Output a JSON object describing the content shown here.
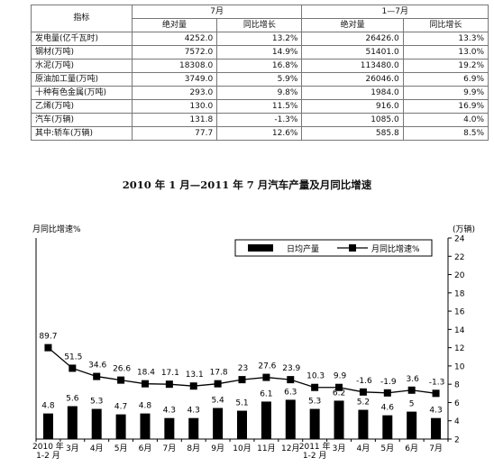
{
  "table": {
    "header": {
      "indicator": "指标",
      "month_group": "7月",
      "ytd_group": "1—7月",
      "abs_label": "绝对量",
      "growth_label": "同比增长"
    },
    "rows": [
      {
        "name": "发电量(亿千瓦时)",
        "jul_abs": "4252.0",
        "jul_growth": "13.2%",
        "ytd_abs": "26426.0",
        "ytd_growth": "13.3%"
      },
      {
        "name": "钢材(万吨)",
        "jul_abs": "7572.0",
        "jul_growth": "14.9%",
        "ytd_abs": "51401.0",
        "ytd_growth": "13.0%"
      },
      {
        "name": "水泥(万吨)",
        "jul_abs": "18308.0",
        "jul_growth": "16.8%",
        "ytd_abs": "113480.0",
        "ytd_growth": "19.2%"
      },
      {
        "name": "原油加工量(万吨)",
        "jul_abs": "3749.0",
        "jul_growth": "5.9%",
        "ytd_abs": "26046.0",
        "ytd_growth": "6.9%"
      },
      {
        "name": "十种有色金属(万吨)",
        "jul_abs": "293.0",
        "jul_growth": "9.8%",
        "ytd_abs": "1984.0",
        "ytd_growth": "9.9%"
      },
      {
        "name": "乙烯(万吨)",
        "jul_abs": "130.0",
        "jul_growth": "11.5%",
        "ytd_abs": "916.0",
        "ytd_growth": "16.9%"
      },
      {
        "name": "汽车(万辆)",
        "jul_abs": "131.8",
        "jul_growth": "-1.3%",
        "ytd_abs": "1085.0",
        "ytd_growth": "4.0%"
      },
      {
        "name": "其中:轿车(万辆)",
        "jul_abs": "77.7",
        "jul_growth": "12.6%",
        "ytd_abs": "585.8",
        "ytd_growth": "8.5%"
      }
    ]
  },
  "chart_title": "2010 年 1 月—2011 年 7 月汽车产量及月同比增速",
  "chart_data": {
    "type": "bar",
    "categories": [
      [
        "2010 年",
        "1-2 月"
      ],
      [
        "3月"
      ],
      [
        "4月"
      ],
      [
        "5月"
      ],
      [
        "6月"
      ],
      [
        "7月"
      ],
      [
        "8月"
      ],
      [
        "9月"
      ],
      [
        "10月"
      ],
      [
        "11月"
      ],
      [
        "12月"
      ],
      [
        "2011 年",
        "1-2 月"
      ],
      [
        "3月"
      ],
      [
        "4月"
      ],
      [
        "5月"
      ],
      [
        "6月"
      ],
      [
        "7月"
      ]
    ],
    "series": [
      {
        "name": "日均产量",
        "type": "bar",
        "axis": "right",
        "values": [
          4.8,
          5.6,
          5.3,
          4.7,
          4.8,
          4.3,
          4.3,
          5.4,
          5.1,
          6.1,
          6.3,
          5.3,
          6.2,
          5.2,
          4.6,
          5,
          4.3
        ]
      },
      {
        "name": "月同比增速%",
        "type": "line",
        "axis": "left",
        "values": [
          89.7,
          51.5,
          34.6,
          26.6,
          18.4,
          17.1,
          13.1,
          17.8,
          23,
          27.6,
          23.9,
          10.3,
          9.9,
          -1.6,
          -1.9,
          3.6,
          -1.3
        ]
      }
    ],
    "bar_labels": [
      "4.8",
      "5.6",
      "5.3",
      "4.7",
      "4.8",
      "4.3",
      "4.3",
      "5.4",
      "5.1",
      "6.1",
      "6.3",
      "5.3",
      "6.2",
      "5.2",
      "4.6",
      "5",
      "4.3"
    ],
    "line_labels": [
      "89.7",
      "51.5",
      "34.6",
      "26.6",
      "18.4",
      "17.1",
      "13.1",
      "17.8",
      "23",
      "27.6",
      "23.9",
      "10.3",
      "9.9",
      "-1.6",
      "-1.9",
      "3.6",
      "-1.3"
    ],
    "line_marker_scale": [
      12,
      9.75,
      8.85,
      8.45,
      8.05,
      8.0,
      7.8,
      8.05,
      8.5,
      8.75,
      8.5,
      7.65,
      7.65,
      7.15,
      7.05,
      7.35,
      7.0
    ],
    "ylabel_left": "月同比增速%",
    "ylabel_right": "(万辆)",
    "right_axis": {
      "ylim": [
        2,
        24
      ],
      "ticks": [
        "2",
        "4",
        "6",
        "8",
        "10",
        "12",
        "14",
        "16",
        "18",
        "20",
        "22",
        "24"
      ]
    },
    "legend": {
      "bar": "日均产量",
      "line": "月同比增速%",
      "placement": "top-right"
    },
    "grid": false,
    "colors": {
      "bar": "#000000",
      "line": "#000000"
    }
  }
}
